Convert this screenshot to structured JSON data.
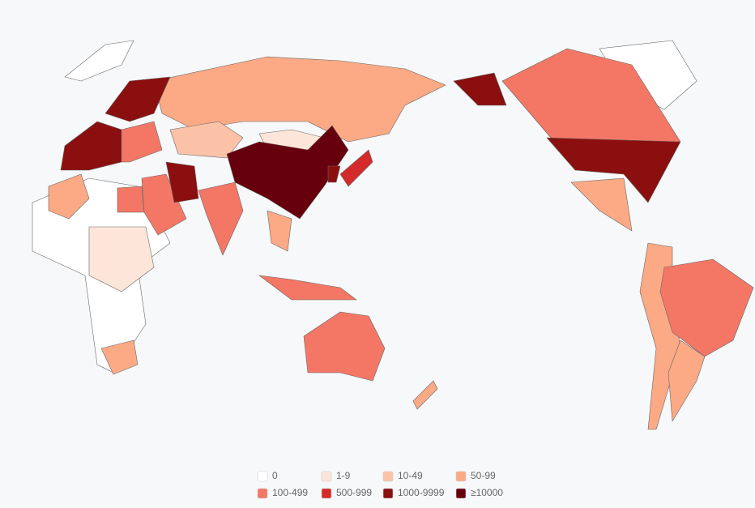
{
  "legend": {
    "items": [
      {
        "label": "0",
        "color": "#ffffff"
      },
      {
        "label": "1-9",
        "color": "#fee5d9"
      },
      {
        "label": "10-49",
        "color": "#fcc2a8"
      },
      {
        "label": "50-99",
        "color": "#fbaa85"
      },
      {
        "label": "100-499",
        "color": "#f47766"
      },
      {
        "label": "500-999",
        "color": "#d42a2a"
      },
      {
        "label": "1000-9999",
        "color": "#8b0f0f"
      },
      {
        "label": "≥10000",
        "color": "#67000d"
      }
    ]
  }
}
